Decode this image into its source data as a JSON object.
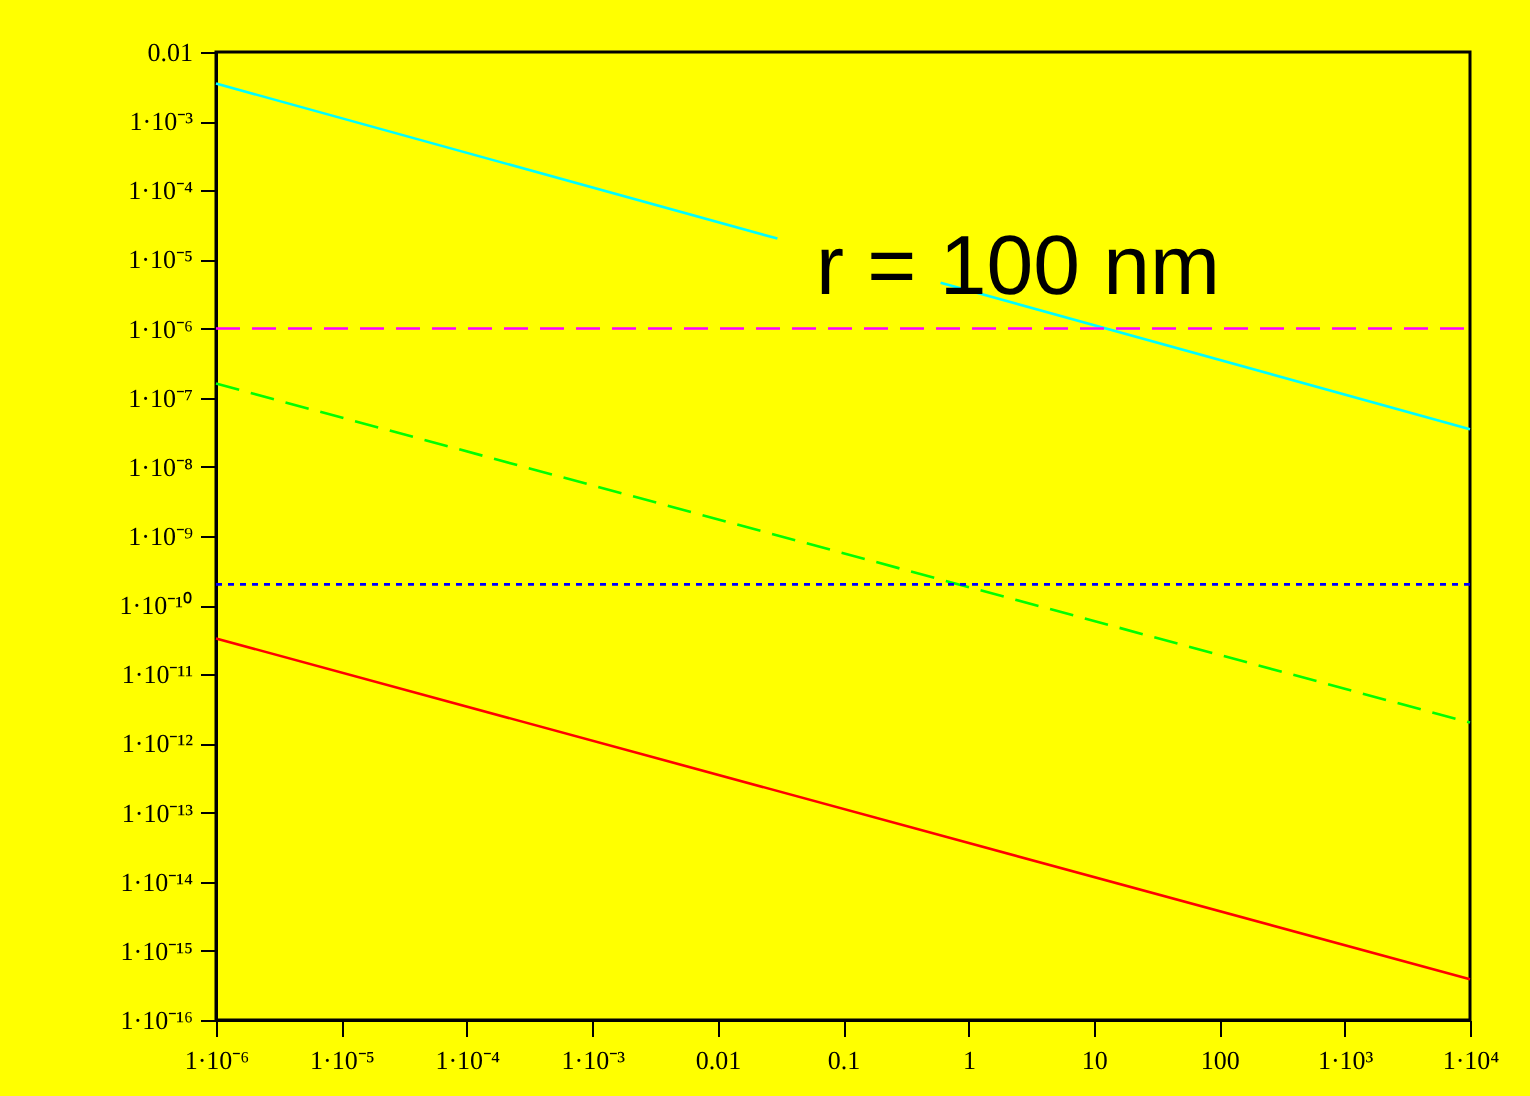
{
  "chart_data": {
    "type": "line",
    "log": "xy",
    "grid": false,
    "annotations": [
      "r = 100 nm"
    ],
    "xlim": [
      1e-06,
      10000.0
    ],
    "ylim": [
      1e-16,
      0.01
    ],
    "xticks": [
      {
        "value": 1e-06,
        "label": "1·10⁻⁶"
      },
      {
        "value": 1e-05,
        "label": "1·10⁻⁵"
      },
      {
        "value": 0.0001,
        "label": "1·10⁻⁴"
      },
      {
        "value": 0.001,
        "label": "1·10⁻³"
      },
      0.01,
      0.1,
      1,
      10,
      100,
      {
        "value": 1000.0,
        "label": "1·10³"
      },
      {
        "value": 10000.0,
        "label": "1·10⁴"
      }
    ],
    "yticks": [
      0.01,
      {
        "value": 0.001,
        "label": "1·10⁻³"
      },
      {
        "value": 0.0001,
        "label": "1·10⁻⁴"
      },
      {
        "value": 1e-05,
        "label": "1·10⁻⁵"
      },
      {
        "value": 1e-06,
        "label": "1·10⁻⁶"
      },
      {
        "value": 1e-07,
        "label": "1·10⁻⁷"
      },
      {
        "value": 1e-08,
        "label": "1·10⁻⁸"
      },
      {
        "value": 1e-09,
        "label": "1·10⁻⁹"
      },
      {
        "value": 1e-10,
        "label": "1·10⁻¹⁰"
      },
      {
        "value": 1e-11,
        "label": "1·10⁻¹¹"
      },
      {
        "value": 1e-12,
        "label": "1·10⁻¹²"
      },
      {
        "value": 1e-13,
        "label": "1·10⁻¹³"
      },
      {
        "value": 1e-14,
        "label": "1·10⁻¹⁴"
      },
      {
        "value": 1e-15,
        "label": "1·10⁻¹⁵"
      },
      {
        "value": 1e-16,
        "label": "1·10⁻¹⁶"
      }
    ],
    "series": [
      {
        "color": "#00ffff",
        "line_style": "solid",
        "x": [
          1e-06,
          0.03,
          0.1,
          0.6,
          10000.0
        ],
        "values": [
          0.0035,
          2e-05,
          null,
          4.6e-06,
          3.5e-08
        ]
      },
      {
        "color": "#ff00ff",
        "line_style": "dashed",
        "x": [
          1e-06,
          10000.0
        ],
        "values": [
          1e-06,
          1e-06
        ]
      },
      {
        "color": "#00ff00",
        "line_style": "dashed",
        "x": [
          1e-06,
          10000.0
        ],
        "values": [
          1.6e-07,
          2e-12
        ]
      },
      {
        "color": "#0000ff",
        "line_style": "dotted",
        "x": [
          1e-06,
          10000.0
        ],
        "values": [
          2e-10,
          2e-10
        ]
      },
      {
        "color": "#ff0000",
        "line_style": "solid",
        "x": [
          1e-06,
          10000.0
        ],
        "values": [
          3.3e-11,
          3.9e-16
        ]
      }
    ]
  }
}
